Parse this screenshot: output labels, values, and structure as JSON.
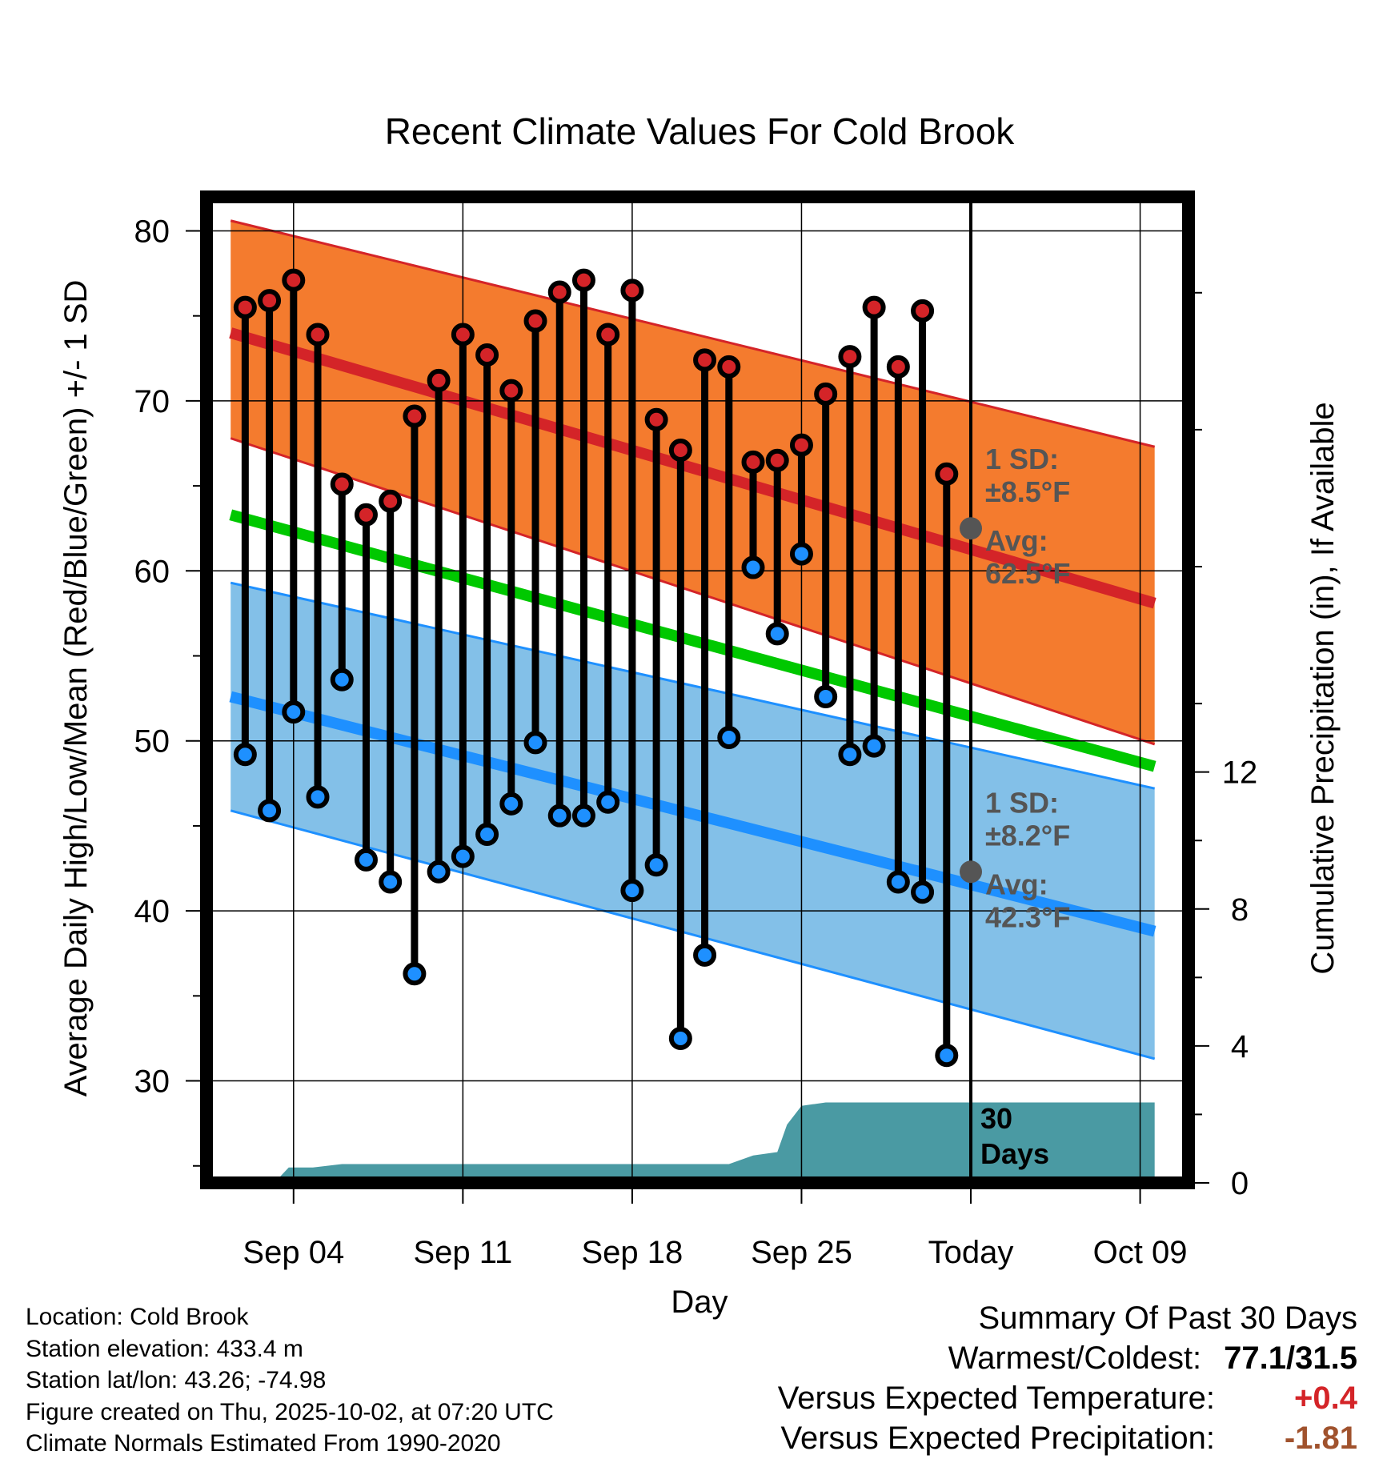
{
  "chart_data": {
    "type": "line",
    "title": "Recent Climate Values For Cold Brook",
    "xlabel": "Day",
    "ylabel": "Average Daily High/Low/Mean (Red/Blue/Green) +/- 1 SD",
    "y2label": "Cumulative Precipitation (in), If Available",
    "ylim": [
      24,
      82
    ],
    "y2lim": [
      0,
      28.8
    ],
    "xlim": [
      -3.6,
      37.0
    ],
    "x_ticks": [
      {
        "x": 0,
        "label": "Sep 04"
      },
      {
        "x": 7,
        "label": "Sep 11"
      },
      {
        "x": 14,
        "label": "Sep 18"
      },
      {
        "x": 21,
        "label": "Sep 25"
      },
      {
        "x": 28,
        "label": "Today"
      },
      {
        "x": 35,
        "label": "Oct 09"
      }
    ],
    "y_ticks": [
      30,
      40,
      50,
      60,
      70,
      80
    ],
    "y2_ticks": [
      0,
      4,
      8,
      12
    ],
    "today_x": 28,
    "normals": {
      "x": [
        -2.6,
        35.6
      ],
      "high_avg": [
        74.0,
        58.1
      ],
      "high_upper": [
        80.6,
        67.3
      ],
      "high_lower": [
        67.8,
        49.8
      ],
      "low_avg": [
        52.6,
        38.8
      ],
      "low_upper": [
        59.3,
        47.2
      ],
      "low_lower": [
        45.9,
        31.3
      ],
      "mean_avg": [
        63.3,
        48.5
      ]
    },
    "series": [
      {
        "name": "Daily High",
        "color": "#d42428",
        "x": [
          -2,
          -1,
          0,
          1,
          2,
          3,
          4,
          5,
          6,
          7,
          8,
          9,
          10,
          11,
          12,
          13,
          14,
          15,
          16,
          17,
          18,
          19,
          20,
          21,
          22,
          23,
          24,
          25,
          26,
          27
        ],
        "values": [
          75.5,
          75.9,
          77.1,
          73.9,
          65.1,
          63.3,
          64.1,
          69.1,
          71.2,
          73.9,
          72.7,
          70.6,
          74.7,
          76.4,
          77.1,
          73.9,
          76.5,
          68.9,
          67.1,
          72.4,
          72.0,
          66.4,
          66.5,
          67.4,
          70.4,
          72.6,
          75.5,
          72.0,
          75.3,
          65.7
        ]
      },
      {
        "name": "Daily Low",
        "color": "#1e90ff",
        "x": [
          -2,
          -1,
          0,
          1,
          2,
          3,
          4,
          5,
          6,
          7,
          8,
          9,
          10,
          11,
          12,
          13,
          14,
          15,
          16,
          17,
          18,
          19,
          20,
          21,
          22,
          23,
          24,
          25,
          26,
          27
        ],
        "values": [
          49.2,
          45.9,
          51.7,
          46.7,
          53.6,
          43.0,
          41.7,
          36.3,
          42.3,
          43.2,
          44.5,
          46.3,
          49.9,
          45.6,
          45.6,
          46.4,
          41.2,
          42.7,
          32.5,
          37.4,
          50.2,
          60.2,
          56.3,
          61.0,
          52.6,
          49.2,
          49.7,
          41.7,
          41.1,
          31.5
        ]
      }
    ],
    "precipitation": {
      "x": [
        -2.6,
        -0.8,
        -0.2,
        0.8,
        2.0,
        4.0,
        6.0,
        8.0,
        10.0,
        12.0,
        14.0,
        16.0,
        18.0,
        19.0,
        20.0,
        20.4,
        21.0,
        22.0,
        24.0,
        26.0,
        28.0,
        30.0,
        32.0,
        35.6
      ],
      "values": [
        0.0,
        0.0,
        0.45,
        0.45,
        0.55,
        0.55,
        0.55,
        0.55,
        0.55,
        0.55,
        0.55,
        0.55,
        0.55,
        0.8,
        0.9,
        1.7,
        2.25,
        2.35,
        2.35,
        2.35,
        2.35,
        2.35,
        2.35,
        2.35
      ],
      "label_line1": "30",
      "label_line2": "Days"
    },
    "annotations": {
      "high_sd_line1": "1 SD:",
      "high_sd_line2": "±8.5°F",
      "high_avg_line1": "Avg:",
      "high_avg_line2": "62.5°F",
      "high_avg_value": 62.5,
      "low_sd_line1": "1 SD:",
      "low_sd_line2": "±8.2°F",
      "low_avg_line1": "Avg:",
      "low_avg_line2": "42.3°F",
      "low_avg_value": 42.3
    },
    "colors": {
      "high_band": "#f47b2e",
      "high_band_edge": "#d42428",
      "high_line": "#d42428",
      "low_band": "#83c0e8",
      "low_band_edge": "#1e90ff",
      "low_line": "#1e90ff",
      "mean_line": "#00c800",
      "precip_fill": "#4a9aa3",
      "today_marker": "#555555",
      "annotation_text": "#555555"
    }
  },
  "footer": {
    "location": "Location: Cold Brook",
    "elevation": "Station elevation: 433.4 m",
    "latlon": "Station lat/lon: 43.26; -74.98",
    "created": "Figure created on Thu, 2025-10-02, at 07:20 UTC",
    "normals": "Climate Normals Estimated From 1990-2020"
  },
  "summary": {
    "heading": "Summary Of Past 30 Days",
    "warmest_coldest_label": "Warmest/Coldest:",
    "warmest_coldest_value": "77.1/31.5",
    "temp_label": "Versus Expected Temperature:",
    "temp_value": "+0.4",
    "temp_color": "#d42428",
    "precip_label": "Versus Expected Precipitation:",
    "precip_value": "-1.81",
    "precip_color": "#a0522d"
  }
}
